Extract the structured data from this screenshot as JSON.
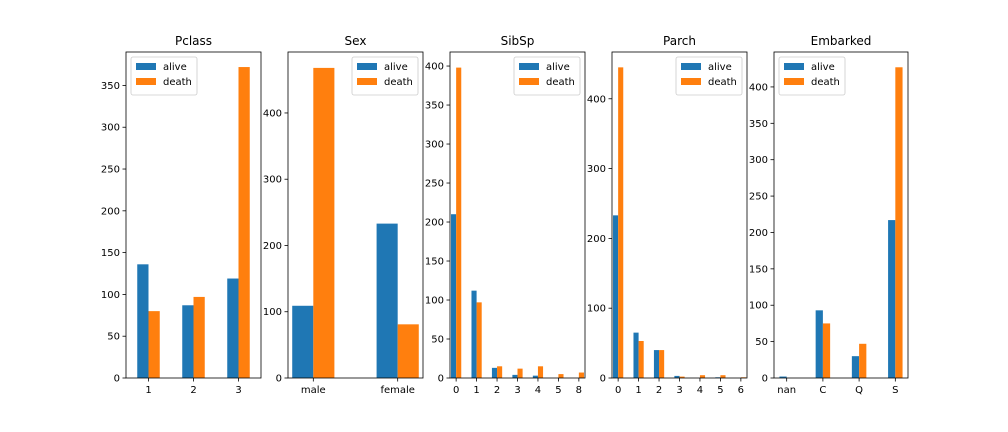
{
  "colors": {
    "alive": "#1f77b4",
    "death": "#ff7f0e"
  },
  "chart_data": [
    {
      "type": "bar",
      "title": "Pclass",
      "categories": [
        "1",
        "2",
        "3"
      ],
      "series": [
        {
          "name": "alive",
          "values": [
            136,
            87,
            119
          ]
        },
        {
          "name": "death",
          "values": [
            80,
            97,
            372
          ]
        }
      ],
      "ylim": [
        0,
        390
      ],
      "yticks": [
        0,
        50,
        100,
        150,
        200,
        250,
        300,
        350
      ],
      "legend": "top-left",
      "grid": false
    },
    {
      "type": "bar",
      "title": "Sex",
      "categories": [
        "male",
        "female"
      ],
      "series": [
        {
          "name": "alive",
          "values": [
            109,
            233
          ]
        },
        {
          "name": "death",
          "values": [
            468,
            81
          ]
        }
      ],
      "ylim": [
        0,
        492
      ],
      "yticks": [
        0,
        100,
        200,
        300,
        400
      ],
      "legend": "top-right",
      "grid": false
    },
    {
      "type": "bar",
      "title": "SibSp",
      "categories": [
        "0",
        "1",
        "2",
        "3",
        "4",
        "5",
        "8"
      ],
      "series": [
        {
          "name": "alive",
          "values": [
            210,
            112,
            13,
            4,
            3,
            0,
            0
          ]
        },
        {
          "name": "death",
          "values": [
            398,
            97,
            15,
            12,
            15,
            5,
            7
          ]
        }
      ],
      "ylim": [
        0,
        418
      ],
      "yticks": [
        0,
        50,
        100,
        150,
        200,
        250,
        300,
        350,
        400
      ],
      "legend": "top-right",
      "grid": false
    },
    {
      "type": "bar",
      "title": "Parch",
      "categories": [
        "0",
        "1",
        "2",
        "3",
        "4",
        "5",
        "6"
      ],
      "series": [
        {
          "name": "alive",
          "values": [
            233,
            65,
            40,
            3,
            0,
            1,
            0
          ]
        },
        {
          "name": "death",
          "values": [
            445,
            53,
            40,
            2,
            4,
            4,
            1
          ]
        }
      ],
      "ylim": [
        0,
        467
      ],
      "yticks": [
        0,
        100,
        200,
        300,
        400
      ],
      "legend": "top-right",
      "grid": false
    },
    {
      "type": "bar",
      "title": "Embarked",
      "categories": [
        "nan",
        "C",
        "Q",
        "S"
      ],
      "series": [
        {
          "name": "alive",
          "values": [
            2,
            93,
            30,
            217
          ]
        },
        {
          "name": "death",
          "values": [
            0,
            75,
            47,
            427
          ]
        }
      ],
      "ylim": [
        0,
        448
      ],
      "yticks": [
        0,
        50,
        100,
        150,
        200,
        250,
        300,
        350,
        400
      ],
      "legend": "top-left",
      "grid": false
    }
  ]
}
